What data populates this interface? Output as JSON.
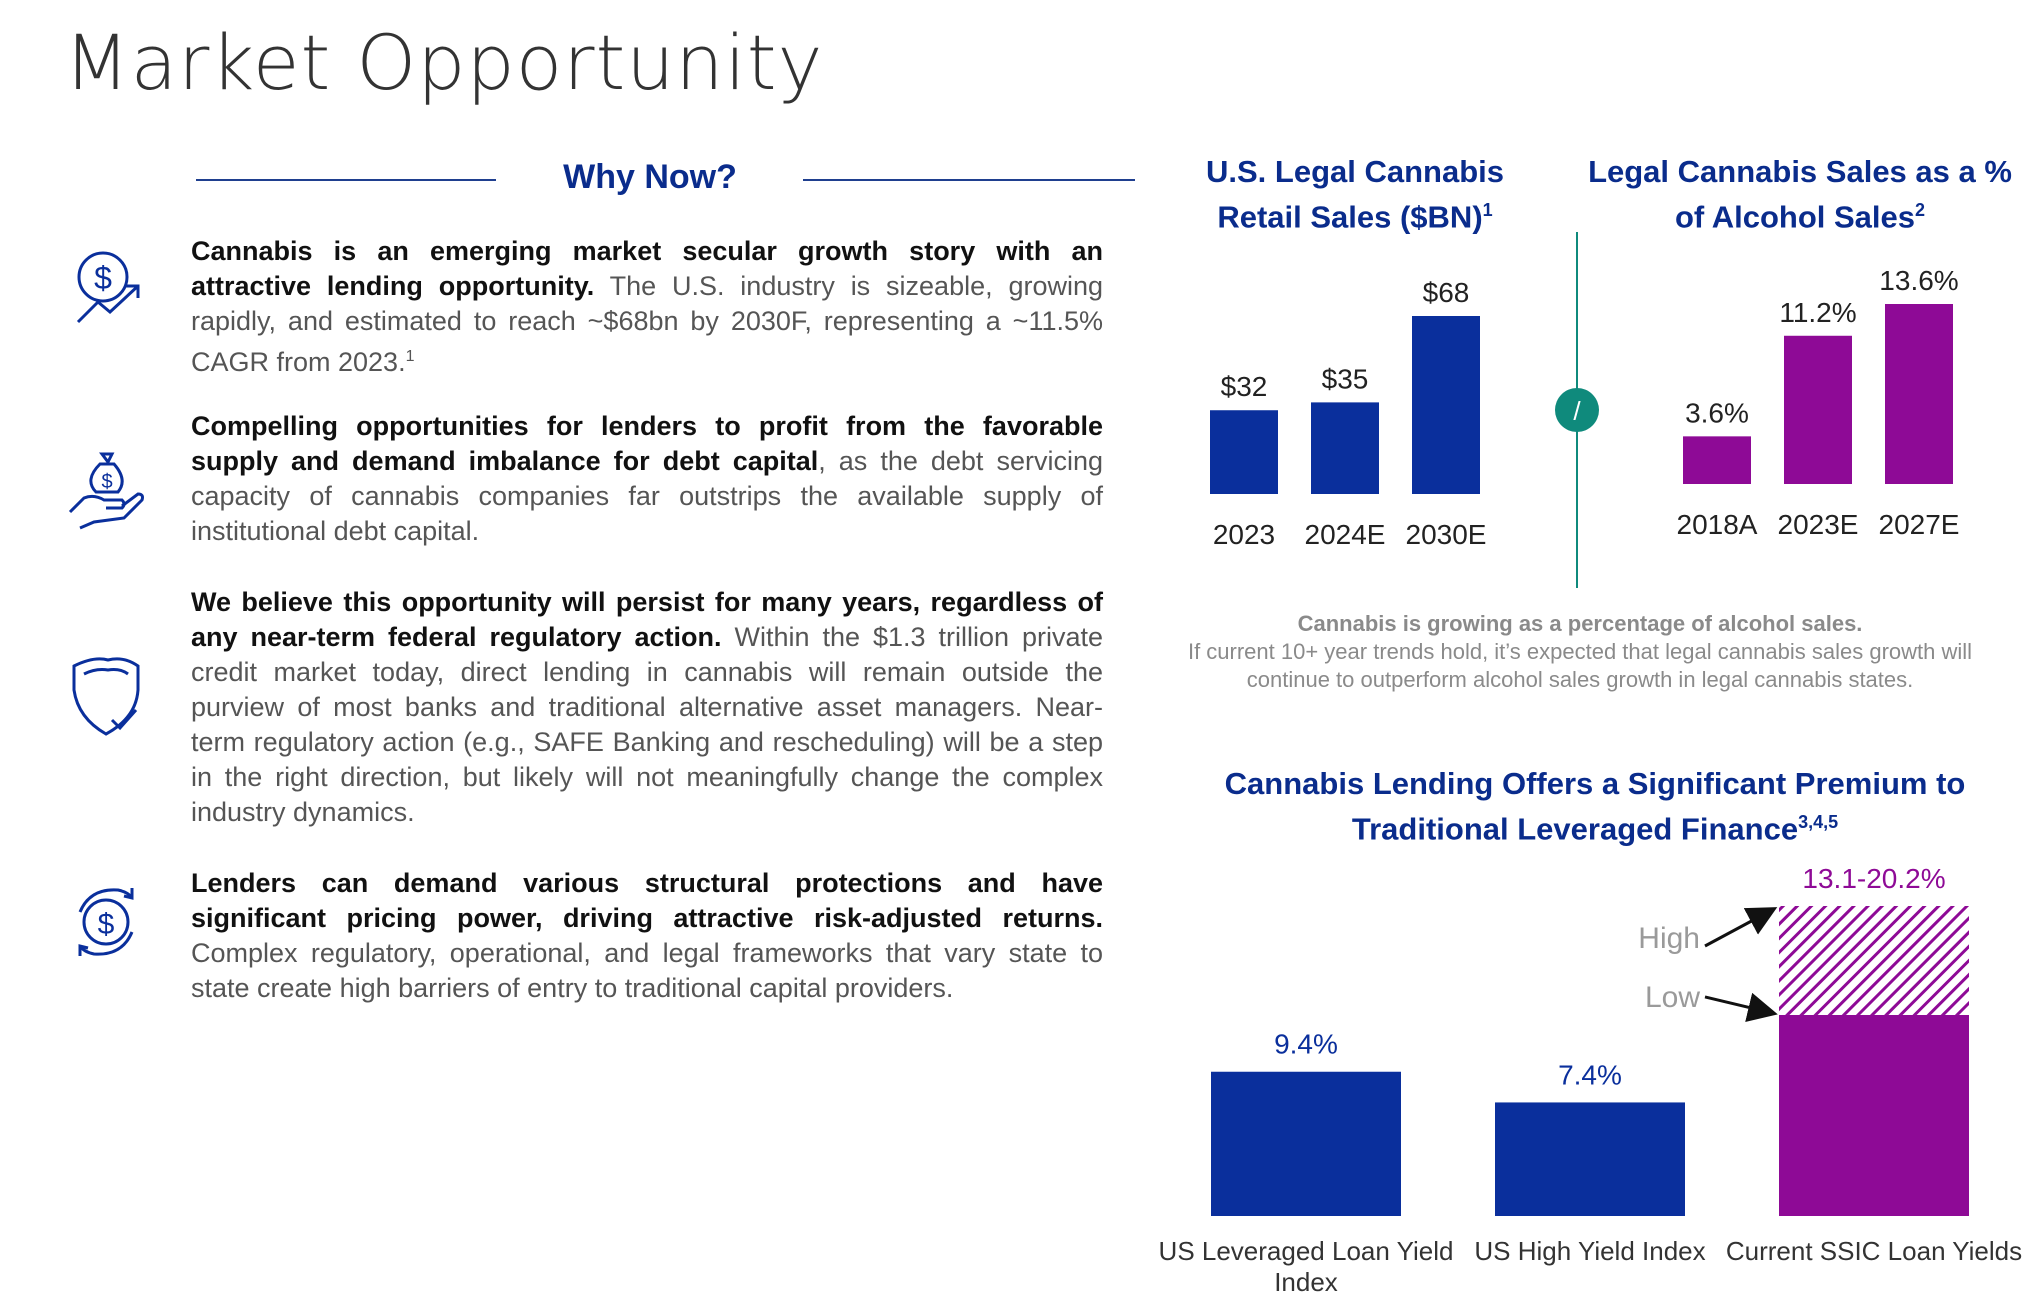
{
  "page_title": "Market Opportunity",
  "why_now": {
    "heading": "Why Now?",
    "items": [
      {
        "icon": "dollar-growth-icon",
        "bold": "Cannabis is an emerging market secular growth story with an attractive lending opportunity.",
        "text": "The U.S. industry is sizeable, growing rapidly, and estimated to reach ~$68bn by 2030F, representing a ~11.5% CAGR from 2023.",
        "sup": "1"
      },
      {
        "icon": "money-bag-hand-icon",
        "bold": "Compelling opportunities for lenders to profit from the favorable supply and demand imbalance for debt capital",
        "text": ", as the debt servicing capacity of cannabis companies far outstrips the available supply of institutional debt capital.",
        "sup": ""
      },
      {
        "icon": "shield-check-icon",
        "bold": "We believe this opportunity will persist for many years, regardless of any near-term federal regulatory action.",
        "text": "Within the $1.3 trillion private credit market today, direct lending in cannabis will remain outside the purview of most banks and traditional alternative asset managers. Near-term regulatory action (e.g., SAFE Banking and rescheduling) will be a step in the right direction, but likely will not meaningfully change the complex industry dynamics.",
        "sup": ""
      },
      {
        "icon": "dollar-cycle-icon",
        "bold": "Lenders can demand various structural protections and have significant pricing power, driving attractive risk-adjusted returns.",
        "text": "Complex regulatory, operational, and legal frameworks that vary state to state create high barriers of entry to traditional capital providers.",
        "sup": ""
      }
    ]
  },
  "colors": {
    "navy": "#0a2f9c",
    "purple": "#8e0a96",
    "teal": "#0f8a7c",
    "heading": "#0a2c8c"
  },
  "divider_badge": "/",
  "chart_notes": {
    "bold": "Cannabis is growing as a percentage of alcohol sales.",
    "text": "If current 10+ year trends hold, it’s expected that legal cannabis sales growth will continue to outperform alcohol sales growth in legal cannabis states."
  },
  "chart_data": [
    {
      "type": "bar",
      "title": "U.S. Legal Cannabis Retail Sales ($BN)",
      "title_sup": "1",
      "categories": [
        "2023",
        "2024E",
        "2030E"
      ],
      "values": [
        32,
        35,
        68
      ],
      "labels": [
        "$32",
        "$35",
        "$68"
      ],
      "color": "#0a2f9c",
      "ylim": [
        0,
        68
      ]
    },
    {
      "type": "bar",
      "title": "Legal Cannabis Sales as a % of Alcohol Sales",
      "title_sup": "2",
      "categories": [
        "2018A",
        "2023E",
        "2027E"
      ],
      "values": [
        3.6,
        11.2,
        13.6
      ],
      "labels": [
        "3.6%",
        "11.2%",
        "13.6%"
      ],
      "color": "#8e0a96",
      "ylim": [
        0,
        13.6
      ]
    },
    {
      "type": "bar",
      "title": "Cannabis Lending Offers a Significant Premium to Traditional Leveraged Finance",
      "title_sup": "3,4,5",
      "categories": [
        "US Leveraged Loan Yield Index",
        "US High Yield Index",
        "Current SSIC Loan Yields"
      ],
      "values": [
        9.4,
        7.4,
        20.2
      ],
      "range": {
        "low": 13.1,
        "high": 20.2
      },
      "labels": [
        "9.4%",
        "7.4%",
        "13.1-20.2%"
      ],
      "annotations": [
        "High",
        "Low"
      ],
      "colors": [
        "#0a2f9c",
        "#0a2f9c",
        "#8e0a96"
      ],
      "ylim": [
        0,
        20.2
      ]
    }
  ]
}
